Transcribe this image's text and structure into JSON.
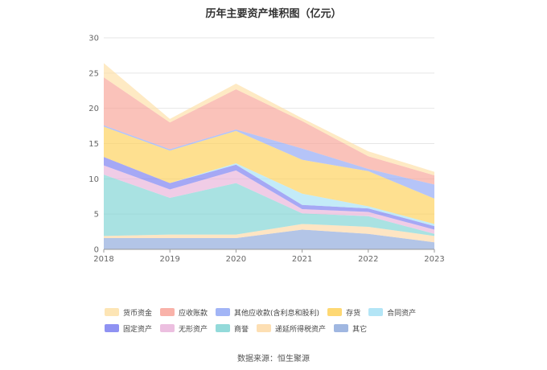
{
  "chart_data": {
    "type": "area",
    "stacked": true,
    "title": "历年主要资产堆积图（亿元）",
    "x": [
      "2018",
      "2019",
      "2020",
      "2021",
      "2022",
      "2023"
    ],
    "ylim": [
      0,
      30
    ],
    "yticks": [
      0,
      5,
      10,
      15,
      20,
      25,
      30
    ],
    "grid": true,
    "legend_position": "bottom",
    "series": [
      {
        "name": "其它",
        "color": "#8faadc",
        "values": [
          1.6,
          1.6,
          1.6,
          2.8,
          2.2,
          1.0
        ]
      },
      {
        "name": "递延所得税资产",
        "color": "#fdd9a6",
        "values": [
          0.3,
          0.5,
          0.5,
          0.8,
          1.0,
          0.9
        ]
      },
      {
        "name": "商誉",
        "color": "#80d4d4",
        "values": [
          8.7,
          5.2,
          7.3,
          1.5,
          1.5,
          0.3
        ]
      },
      {
        "name": "无形资产",
        "color": "#e9b4da",
        "values": [
          1.3,
          1.2,
          1.8,
          0.6,
          0.6,
          0.6
        ]
      },
      {
        "name": "固定资产",
        "color": "#7b7ff0",
        "values": [
          1.2,
          0.9,
          0.8,
          0.6,
          0.5,
          0.5
        ]
      },
      {
        "name": "合同资产",
        "color": "#a6e1f5",
        "values": [
          0.0,
          0.0,
          0.2,
          1.6,
          0.3,
          0.3
        ]
      },
      {
        "name": "存货",
        "color": "#fed15b",
        "values": [
          4.3,
          4.6,
          4.6,
          4.8,
          5.0,
          3.6
        ]
      },
      {
        "name": "其他应收款(含利息和股利)",
        "color": "#92a8f5",
        "values": [
          0.2,
          0.2,
          0.2,
          1.6,
          0.3,
          2.0
        ]
      },
      {
        "name": "应收账款",
        "color": "#f8a59a",
        "values": [
          6.8,
          3.8,
          5.7,
          3.9,
          1.8,
          1.3
        ]
      },
      {
        "name": "货币资金",
        "color": "#fde0a8",
        "values": [
          2.0,
          0.5,
          0.8,
          0.4,
          0.7,
          0.5
        ]
      }
    ],
    "legend_order": [
      "货币资金",
      "应收账款",
      "其他应收款(含利息和股利)",
      "存货",
      "合同资产",
      "固定资产",
      "无形资产",
      "商誉",
      "递延所得税资产",
      "其它"
    ]
  },
  "source": "数据来源：恒生聚源"
}
